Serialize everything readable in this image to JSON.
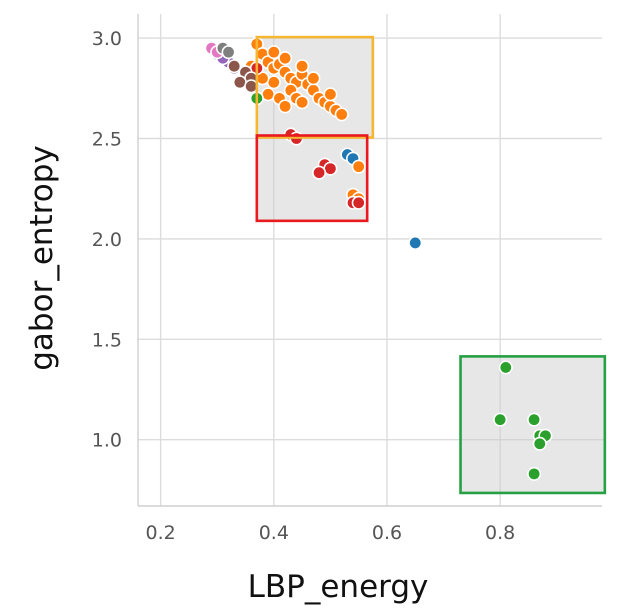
{
  "chart_data": {
    "type": "scatter",
    "xlabel": "LBP_energy",
    "ylabel": "gabor_entropy",
    "xlim": [
      0.16,
      0.98
    ],
    "ylim": [
      0.67,
      3.12
    ],
    "xticks": [
      "0.2",
      "0.4",
      "0.6",
      "0.8"
    ],
    "xtick_values": [
      0.2,
      0.4,
      0.6,
      0.8
    ],
    "yticks": [
      "1.0",
      "1.5",
      "2.0",
      "2.5",
      "3.0"
    ],
    "ytick_values": [
      1.0,
      1.5,
      2.0,
      2.5,
      3.0
    ],
    "grid": true,
    "background": "#ffffff",
    "series": [
      {
        "color": "#1f77b4",
        "points": [
          [
            0.53,
            2.42
          ],
          [
            0.54,
            2.4
          ],
          [
            0.65,
            1.98
          ]
        ]
      },
      {
        "color": "#ff7f0e",
        "points": [
          [
            0.37,
            2.97
          ],
          [
            0.38,
            2.92
          ],
          [
            0.39,
            2.88
          ],
          [
            0.4,
            2.85
          ],
          [
            0.41,
            2.87
          ],
          [
            0.42,
            2.83
          ],
          [
            0.43,
            2.8
          ],
          [
            0.44,
            2.78
          ],
          [
            0.45,
            2.82
          ],
          [
            0.46,
            2.77
          ],
          [
            0.47,
            2.74
          ],
          [
            0.48,
            2.7
          ],
          [
            0.49,
            2.68
          ],
          [
            0.5,
            2.66
          ],
          [
            0.51,
            2.64
          ],
          [
            0.52,
            2.62
          ],
          [
            0.4,
            2.78
          ],
          [
            0.39,
            2.72
          ],
          [
            0.41,
            2.7
          ],
          [
            0.43,
            2.74
          ],
          [
            0.44,
            2.7
          ],
          [
            0.45,
            2.68
          ],
          [
            0.42,
            2.66
          ],
          [
            0.38,
            2.8
          ],
          [
            0.4,
            2.93
          ],
          [
            0.42,
            2.9
          ],
          [
            0.45,
            2.86
          ],
          [
            0.47,
            2.8
          ],
          [
            0.5,
            2.72
          ],
          [
            0.36,
            2.86
          ],
          [
            0.54,
            2.22
          ],
          [
            0.55,
            2.36
          ],
          [
            0.55,
            2.2
          ]
        ]
      },
      {
        "color": "#2ca02c",
        "points": [
          [
            0.37,
            2.7
          ],
          [
            0.81,
            1.36
          ],
          [
            0.8,
            1.1
          ],
          [
            0.86,
            1.1
          ],
          [
            0.87,
            1.02
          ],
          [
            0.88,
            1.02
          ],
          [
            0.87,
            0.98
          ],
          [
            0.86,
            0.83
          ]
        ]
      },
      {
        "color": "#d62728",
        "points": [
          [
            0.37,
            2.85
          ],
          [
            0.43,
            2.52
          ],
          [
            0.44,
            2.5
          ],
          [
            0.49,
            2.37
          ],
          [
            0.5,
            2.35
          ],
          [
            0.48,
            2.33
          ],
          [
            0.54,
            2.18
          ],
          [
            0.55,
            2.18
          ]
        ]
      },
      {
        "color": "#9467bd",
        "points": [
          [
            0.3,
            2.92
          ],
          [
            0.32,
            2.88
          ],
          [
            0.31,
            2.9
          ],
          [
            0.33,
            2.85
          ]
        ]
      },
      {
        "color": "#8c564b",
        "points": [
          [
            0.33,
            2.86
          ],
          [
            0.35,
            2.83
          ],
          [
            0.36,
            2.8
          ],
          [
            0.34,
            2.78
          ],
          [
            0.36,
            2.76
          ]
        ]
      },
      {
        "color": "#e377c2",
        "points": [
          [
            0.29,
            2.95
          ],
          [
            0.3,
            2.93
          ]
        ]
      },
      {
        "color": "#7f7f7f",
        "points": [
          [
            0.31,
            2.95
          ],
          [
            0.32,
            2.93
          ]
        ]
      }
    ],
    "annotations": [
      {
        "shape": "rectangle",
        "edge_color": "#f5b731",
        "fill": "#e6e6e6",
        "x": [
          0.37,
          0.575
        ],
        "y": [
          2.505,
          3.005
        ]
      },
      {
        "shape": "rectangle",
        "edge_color": "#e8191f",
        "fill": "#e6e6e6",
        "x": [
          0.37,
          0.565
        ],
        "y": [
          2.09,
          2.515
        ]
      },
      {
        "shape": "rectangle",
        "edge_color": "#27a045",
        "fill": "#e6e6e6",
        "x": [
          0.73,
          0.985
        ],
        "y": [
          0.735,
          1.415
        ]
      }
    ]
  }
}
